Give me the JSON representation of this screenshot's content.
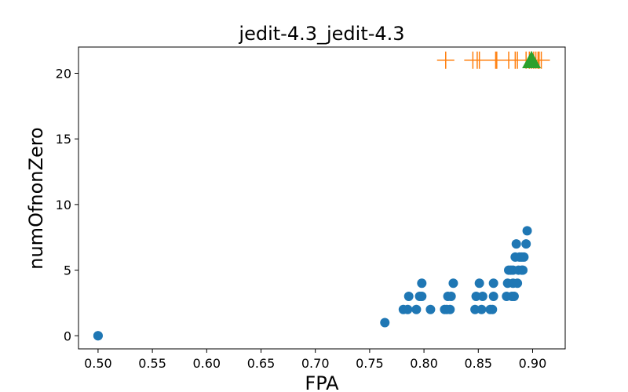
{
  "chart_data": {
    "type": "scatter",
    "title": "jedit-4.3_jedit-4.3",
    "xlabel": "FPA",
    "ylabel": "numOfnonZero",
    "xlim": [
      0.482,
      0.93
    ],
    "ylim": [
      -1.0,
      22.0
    ],
    "xticks": [
      "0.50",
      "0.55",
      "0.60",
      "0.65",
      "0.70",
      "0.75",
      "0.80",
      "0.85",
      "0.90"
    ],
    "yticks": [
      "0",
      "5",
      "10",
      "15",
      "20"
    ],
    "grid": false,
    "colors": {
      "circles": "#1f77b4",
      "pluses": "#ff7f0e",
      "triangle": "#2ca02c"
    },
    "series": [
      {
        "marker": "circle",
        "points": [
          [
            0.5,
            0
          ],
          [
            0.5,
            0
          ],
          [
            0.764,
            1
          ],
          [
            0.781,
            2
          ],
          [
            0.785,
            2
          ],
          [
            0.786,
            3
          ],
          [
            0.793,
            2
          ],
          [
            0.796,
            3
          ],
          [
            0.798,
            3
          ],
          [
            0.798,
            4
          ],
          [
            0.806,
            2
          ],
          [
            0.819,
            2
          ],
          [
            0.821,
            2
          ],
          [
            0.822,
            3
          ],
          [
            0.824,
            2
          ],
          [
            0.825,
            3
          ],
          [
            0.827,
            4
          ],
          [
            0.847,
            2
          ],
          [
            0.848,
            3
          ],
          [
            0.851,
            4
          ],
          [
            0.853,
            2
          ],
          [
            0.854,
            3
          ],
          [
            0.861,
            2
          ],
          [
            0.863,
            2
          ],
          [
            0.864,
            3
          ],
          [
            0.864,
            4
          ],
          [
            0.876,
            3
          ],
          [
            0.877,
            4
          ],
          [
            0.878,
            5
          ],
          [
            0.88,
            5
          ],
          [
            0.881,
            3
          ],
          [
            0.882,
            4
          ],
          [
            0.882,
            5
          ],
          [
            0.883,
            3
          ],
          [
            0.884,
            6
          ],
          [
            0.885,
            7
          ],
          [
            0.886,
            4
          ],
          [
            0.887,
            5
          ],
          [
            0.888,
            6
          ],
          [
            0.89,
            5
          ],
          [
            0.89,
            6
          ],
          [
            0.891,
            5
          ],
          [
            0.892,
            6
          ],
          [
            0.894,
            7
          ],
          [
            0.895,
            8
          ]
        ]
      },
      {
        "marker": "plus",
        "points": [
          [
            0.82,
            21
          ],
          [
            0.845,
            21
          ],
          [
            0.849,
            21
          ],
          [
            0.851,
            21
          ],
          [
            0.866,
            21
          ],
          [
            0.867,
            21
          ],
          [
            0.878,
            21
          ],
          [
            0.884,
            21
          ],
          [
            0.886,
            21
          ],
          [
            0.894,
            21
          ],
          [
            0.897,
            21
          ],
          [
            0.899,
            21
          ],
          [
            0.901,
            21
          ],
          [
            0.903,
            21
          ],
          [
            0.905,
            21
          ],
          [
            0.906,
            21
          ],
          [
            0.908,
            21
          ]
        ]
      },
      {
        "marker": "triangle",
        "points": [
          [
            0.899,
            21
          ]
        ]
      }
    ]
  }
}
